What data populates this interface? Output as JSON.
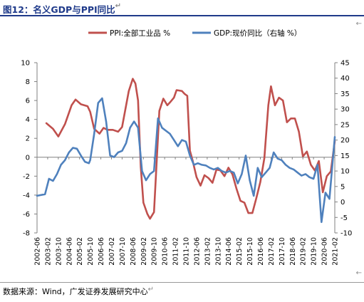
{
  "header": {
    "title": "图12：名义GDP与PPI同比"
  },
  "footer": {
    "source": "数据来源：Wind，广发证券发展研究中心"
  },
  "marks": {
    "return_glyph": "↵",
    "arrow_glyph": "←"
  },
  "chart_data": {
    "type": "line",
    "title": "图12：名义GDP与PPI同比",
    "xlabel": "",
    "ylabel": "",
    "ylim_left": [
      -8,
      10
    ],
    "ylim_right": [
      -10,
      45
    ],
    "yticks_left": [
      -8,
      -6,
      -4,
      -2,
      0,
      2,
      4,
      6,
      8,
      10
    ],
    "yticks_right": [
      -10,
      -5,
      0,
      5,
      10,
      15,
      20,
      25,
      30,
      35,
      40,
      45
    ],
    "x_range": [
      "2002-06",
      "2021-02"
    ],
    "x_tick_labels": [
      "2002-06",
      "2003-02",
      "2003-10",
      "2004-06",
      "2005-02",
      "2005-10",
      "2006-06",
      "2007-02",
      "2007-10",
      "2008-06",
      "2009-02",
      "2009-10",
      "2010-06",
      "2011-02",
      "2011-10",
      "2012-06",
      "2013-02",
      "2013-10",
      "2014-06",
      "2015-02",
      "2015-10",
      "2016-06",
      "2017-02",
      "2017-10",
      "2018-06",
      "2019-02",
      "2019-10",
      "2020-06",
      "2021-02"
    ],
    "grid": false,
    "legend_position": "top",
    "series": [
      {
        "name": "PPI:全部工业品 %",
        "axis": "left",
        "color": "#c0504d",
        "x": [
          "2003-01",
          "2003-06",
          "2003-10",
          "2004-03",
          "2004-08",
          "2004-11",
          "2005-03",
          "2005-08",
          "2005-10",
          "2006-01",
          "2006-05",
          "2006-08",
          "2006-11",
          "2007-03",
          "2007-07",
          "2007-10",
          "2008-03",
          "2008-06",
          "2008-08",
          "2008-10",
          "2008-12",
          "2009-02",
          "2009-05",
          "2009-07",
          "2009-10",
          "2010-02",
          "2010-05",
          "2010-08",
          "2010-10",
          "2011-01",
          "2011-03",
          "2011-07",
          "2011-09",
          "2011-11",
          "2012-01",
          "2012-03",
          "2012-06",
          "2012-09",
          "2012-12",
          "2013-03",
          "2013-06",
          "2013-09",
          "2013-12",
          "2014-03",
          "2014-06",
          "2014-09",
          "2014-12",
          "2015-03",
          "2015-06",
          "2015-09",
          "2015-12",
          "2016-03",
          "2016-06",
          "2016-09",
          "2016-12",
          "2017-02",
          "2017-05",
          "2017-08",
          "2017-11",
          "2018-02",
          "2018-05",
          "2018-08",
          "2018-11",
          "2019-02",
          "2019-05",
          "2019-08",
          "2019-11",
          "2020-02",
          "2020-05",
          "2020-08",
          "2020-11",
          "2021-02"
        ],
        "values": [
          3.6,
          3.0,
          2.2,
          3.5,
          5.5,
          6.1,
          5.6,
          5.4,
          4.8,
          3.0,
          2.5,
          3.1,
          2.9,
          2.9,
          2.7,
          3.2,
          7.0,
          8.3,
          7.8,
          6.0,
          -1.0,
          -4.8,
          -6.0,
          -6.5,
          -5.8,
          4.9,
          6.2,
          5.5,
          5.8,
          6.3,
          7.1,
          7.0,
          6.7,
          6.5,
          0.7,
          -0.3,
          -2.1,
          -3.0,
          -1.9,
          -2.2,
          -2.7,
          -1.3,
          -1.4,
          -2.0,
          -1.1,
          -1.8,
          -3.3,
          -4.6,
          -4.8,
          -5.9,
          -5.9,
          -4.3,
          -2.6,
          -0.1,
          5.5,
          7.5,
          5.5,
          6.3,
          6.0,
          3.7,
          4.1,
          4.1,
          2.7,
          0.1,
          0.6,
          -0.8,
          -1.4,
          -0.4,
          -3.7,
          -2.0,
          -1.5,
          1.7
        ]
      },
      {
        "name": "GDP:现价同比（右轴 %）",
        "axis": "right",
        "color": "#4f81bd",
        "x": [
          "2002-06",
          "2002-12",
          "2003-03",
          "2003-06",
          "2003-09",
          "2003-12",
          "2004-03",
          "2004-06",
          "2004-09",
          "2004-12",
          "2005-03",
          "2005-06",
          "2005-09",
          "2005-10",
          "2006-01",
          "2006-04",
          "2006-07",
          "2006-10",
          "2007-01",
          "2007-04",
          "2007-07",
          "2007-10",
          "2008-01",
          "2008-04",
          "2008-07",
          "2008-10",
          "2009-01",
          "2009-04",
          "2009-07",
          "2009-10",
          "2010-01",
          "2010-04",
          "2010-07",
          "2010-10",
          "2011-01",
          "2011-04",
          "2011-07",
          "2011-10",
          "2012-01",
          "2012-04",
          "2012-07",
          "2012-10",
          "2013-01",
          "2013-04",
          "2013-07",
          "2013-10",
          "2014-01",
          "2014-04",
          "2014-07",
          "2014-10",
          "2015-01",
          "2015-04",
          "2015-07",
          "2015-10",
          "2016-01",
          "2016-04",
          "2016-07",
          "2016-10",
          "2017-01",
          "2017-04",
          "2017-07",
          "2017-10",
          "2018-01",
          "2018-04",
          "2018-07",
          "2018-10",
          "2019-01",
          "2019-04",
          "2019-07",
          "2019-10",
          "2020-01",
          "2020-04",
          "2020-07",
          "2020-10",
          "2021-02"
        ],
        "values": [
          2.0,
          2.5,
          7.5,
          6.8,
          9.0,
          12.0,
          13.5,
          16.0,
          17.5,
          17.2,
          15.0,
          13.0,
          12.5,
          13.5,
          22.0,
          32.0,
          33.5,
          26.0,
          15.0,
          14.5,
          16.0,
          16.5,
          19.0,
          24.0,
          26.0,
          24.0,
          10.0,
          7.0,
          9.0,
          10.0,
          27.0,
          24.0,
          23.0,
          22.0,
          20.0,
          18.0,
          20.0,
          19.5,
          15.0,
          12.0,
          12.5,
          12.0,
          11.8,
          11.0,
          10.5,
          11.0,
          10.0,
          9.5,
          10.0,
          9.5,
          6.0,
          9.0,
          15.0,
          7.0,
          2.0,
          11.0,
          8.0,
          9.5,
          11.0,
          16.0,
          14.0,
          13.5,
          12.0,
          11.0,
          10.5,
          9.5,
          8.5,
          9.0,
          8.0,
          7.5,
          12.0,
          -6.5,
          3.0,
          1.0,
          21.0
        ]
      }
    ]
  }
}
